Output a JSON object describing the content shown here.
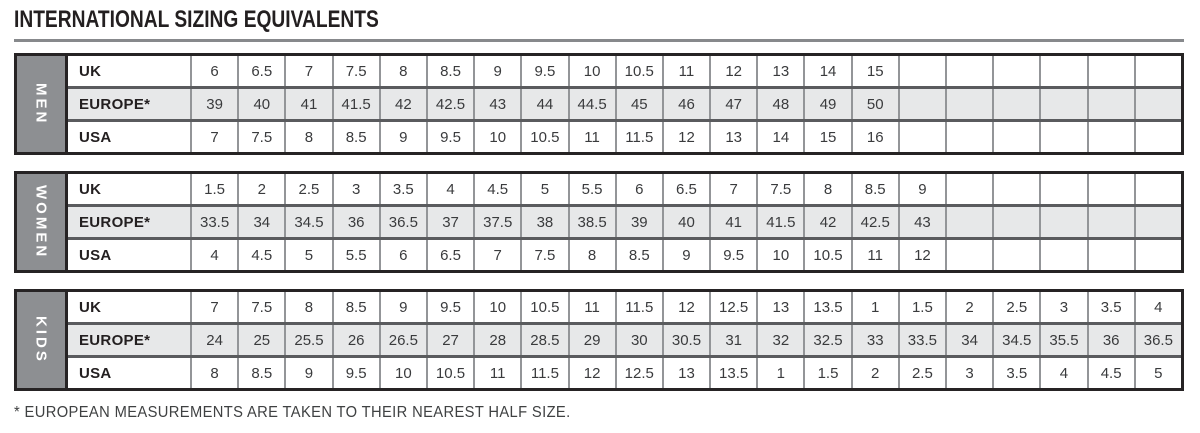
{
  "title": "INTERNATIONAL SIZING EQUIVALENTS",
  "footnote": "* EUROPEAN MEASUREMENTS ARE TAKEN TO THEIR NEAREST HALF SIZE.",
  "colors": {
    "band_gray": "#8d8f92",
    "band_text": "#ffffff",
    "shaded_row": "#e7e8e9",
    "outer_border": "#262324",
    "row_separator": "#5a5b5e",
    "cell_border": "#939598",
    "rule_gray": "#87898c",
    "title_text": "#231f20",
    "cell_text": "#3a3b3d",
    "footnote_text": "#3f4142"
  },
  "table": {
    "columns": 21,
    "sections": [
      {
        "label": "MEN",
        "rows": [
          {
            "label": "UK",
            "shaded": false,
            "values": [
              "6",
              "6.5",
              "7",
              "7.5",
              "8",
              "8.5",
              "9",
              "9.5",
              "10",
              "10.5",
              "11",
              "12",
              "13",
              "14",
              "15"
            ]
          },
          {
            "label": "EUROPE*",
            "shaded": true,
            "values": [
              "39",
              "40",
              "41",
              "41.5",
              "42",
              "42.5",
              "43",
              "44",
              "44.5",
              "45",
              "46",
              "47",
              "48",
              "49",
              "50"
            ]
          },
          {
            "label": "USA",
            "shaded": false,
            "values": [
              "7",
              "7.5",
              "8",
              "8.5",
              "9",
              "9.5",
              "10",
              "10.5",
              "11",
              "11.5",
              "12",
              "13",
              "14",
              "15",
              "16"
            ]
          }
        ]
      },
      {
        "label": "WOMEN",
        "rows": [
          {
            "label": "UK",
            "shaded": false,
            "values": [
              "1.5",
              "2",
              "2.5",
              "3",
              "3.5",
              "4",
              "4.5",
              "5",
              "5.5",
              "6",
              "6.5",
              "7",
              "7.5",
              "8",
              "8.5",
              "9"
            ]
          },
          {
            "label": "EUROPE*",
            "shaded": true,
            "values": [
              "33.5",
              "34",
              "34.5",
              "36",
              "36.5",
              "37",
              "37.5",
              "38",
              "38.5",
              "39",
              "40",
              "41",
              "41.5",
              "42",
              "42.5",
              "43"
            ]
          },
          {
            "label": "USA",
            "shaded": false,
            "values": [
              "4",
              "4.5",
              "5",
              "5.5",
              "6",
              "6.5",
              "7",
              "7.5",
              "8",
              "8.5",
              "9",
              "9.5",
              "10",
              "10.5",
              "11",
              "12"
            ]
          }
        ]
      },
      {
        "label": "KIDS",
        "rows": [
          {
            "label": "UK",
            "shaded": false,
            "values": [
              "7",
              "7.5",
              "8",
              "8.5",
              "9",
              "9.5",
              "10",
              "10.5",
              "11",
              "11.5",
              "12",
              "12.5",
              "13",
              "13.5",
              "1",
              "1.5",
              "2",
              "2.5",
              "3",
              "3.5",
              "4"
            ]
          },
          {
            "label": "EUROPE*",
            "shaded": true,
            "values": [
              "24",
              "25",
              "25.5",
              "26",
              "26.5",
              "27",
              "28",
              "28.5",
              "29",
              "30",
              "30.5",
              "31",
              "32",
              "32.5",
              "33",
              "33.5",
              "34",
              "34.5",
              "35.5",
              "36",
              "36.5"
            ]
          },
          {
            "label": "USA",
            "shaded": false,
            "values": [
              "8",
              "8.5",
              "9",
              "9.5",
              "10",
              "10.5",
              "11",
              "11.5",
              "12",
              "12.5",
              "13",
              "13.5",
              "1",
              "1.5",
              "2",
              "2.5",
              "3",
              "3.5",
              "4",
              "4.5",
              "5"
            ]
          }
        ]
      }
    ]
  }
}
